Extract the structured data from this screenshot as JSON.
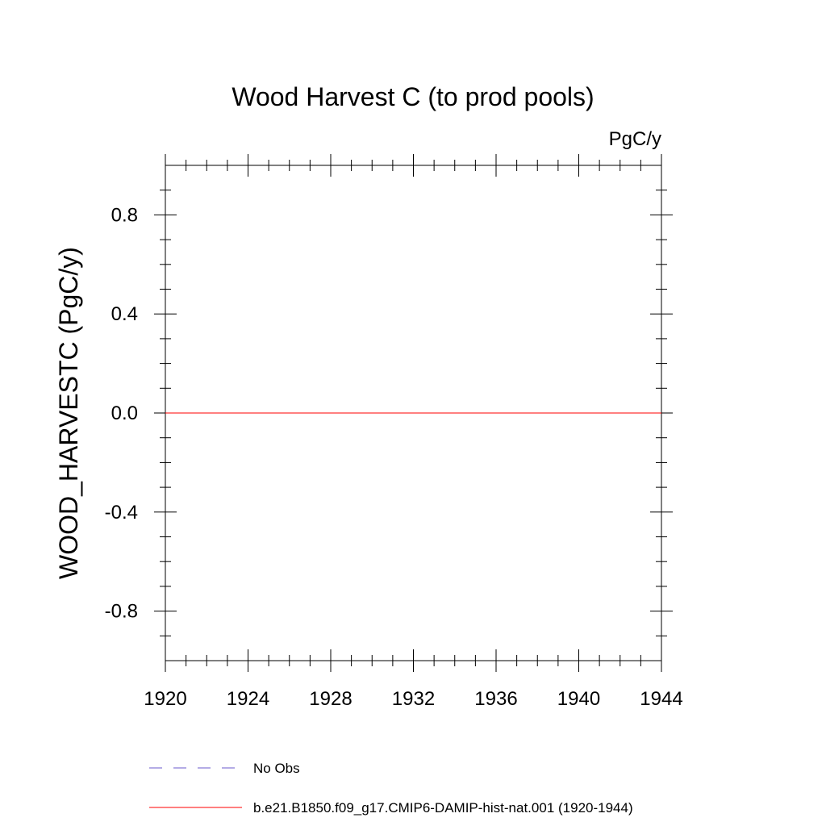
{
  "chart_data": {
    "type": "line",
    "title": "Wood Harvest C (to prod pools)",
    "units_label": "PgC/y",
    "ylabel": "WOOD_HARVESTC  (PgC/y)",
    "xlabel": "",
    "xlim": [
      1920,
      1944
    ],
    "ylim": [
      -1.0,
      1.0
    ],
    "x_ticks": [
      1920,
      1924,
      1928,
      1932,
      1936,
      1940,
      1944
    ],
    "x_tick_labels": [
      "1920",
      "1924",
      "1928",
      "1932",
      "1936",
      "1940",
      "1944"
    ],
    "y_ticks": [
      -0.8,
      -0.4,
      0.0,
      0.4,
      0.8
    ],
    "y_tick_labels": [
      "-0.8",
      "-0.4",
      "0.0",
      "0.4",
      "0.8"
    ],
    "grid": false,
    "legend_position": "bottom",
    "series": [
      {
        "name": "No Obs",
        "color": "#6a5acd",
        "dash": "dashed",
        "x": [],
        "y": []
      },
      {
        "name": "b.e21.B1850.f09_g17.CMIP6-DAMIP-hist-nat.001 (1920-1944)",
        "color": "#ff0000",
        "dash": "solid",
        "x": [
          1920,
          1944
        ],
        "y": [
          0.0,
          0.0
        ]
      }
    ]
  }
}
